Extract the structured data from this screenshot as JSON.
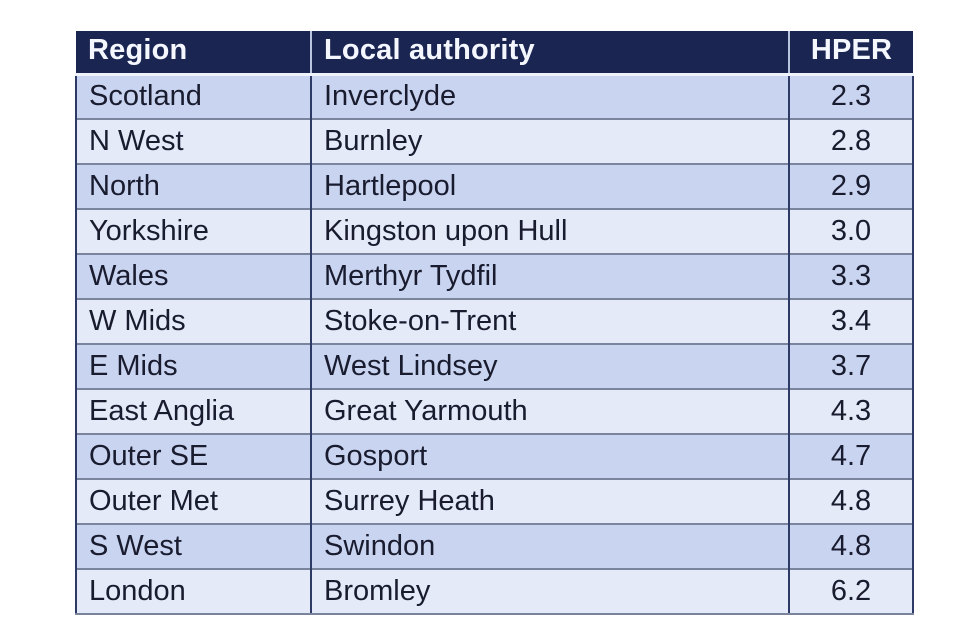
{
  "chart_data": {
    "type": "table",
    "columns": [
      "Region",
      "Local authority",
      "HPER"
    ],
    "rows": [
      {
        "region": "Scotland",
        "authority": "Inverclyde",
        "hper": "2.3"
      },
      {
        "region": "N West",
        "authority": "Burnley",
        "hper": "2.8"
      },
      {
        "region": "North",
        "authority": "Hartlepool",
        "hper": "2.9"
      },
      {
        "region": "Yorkshire",
        "authority": "Kingston upon Hull",
        "hper": "3.0"
      },
      {
        "region": "Wales",
        "authority": "Merthyr Tydfil",
        "hper": "3.3"
      },
      {
        "region": "W Mids",
        "authority": "Stoke-on-Trent",
        "hper": "3.4"
      },
      {
        "region": "E Mids",
        "authority": "West Lindsey",
        "hper": "3.7"
      },
      {
        "region": "East Anglia",
        "authority": "Great Yarmouth",
        "hper": "4.3"
      },
      {
        "region": "Outer SE",
        "authority": "Gosport",
        "hper": "4.7"
      },
      {
        "region": "Outer Met",
        "authority": "Surrey Heath",
        "hper": "4.8"
      },
      {
        "region": "S West",
        "authority": "Swindon",
        "hper": "4.8"
      },
      {
        "region": "London",
        "authority": "Bromley",
        "hper": "6.2"
      }
    ]
  },
  "colors": {
    "header_bg": "#1a2551",
    "header_text": "#f5f7ff",
    "row_dark": "#c9d4f0",
    "row_light": "#e4eaf8",
    "grid_vertical": "#2e3a66",
    "grid_horizontal": "#7a849c",
    "text": "#191b2e"
  }
}
